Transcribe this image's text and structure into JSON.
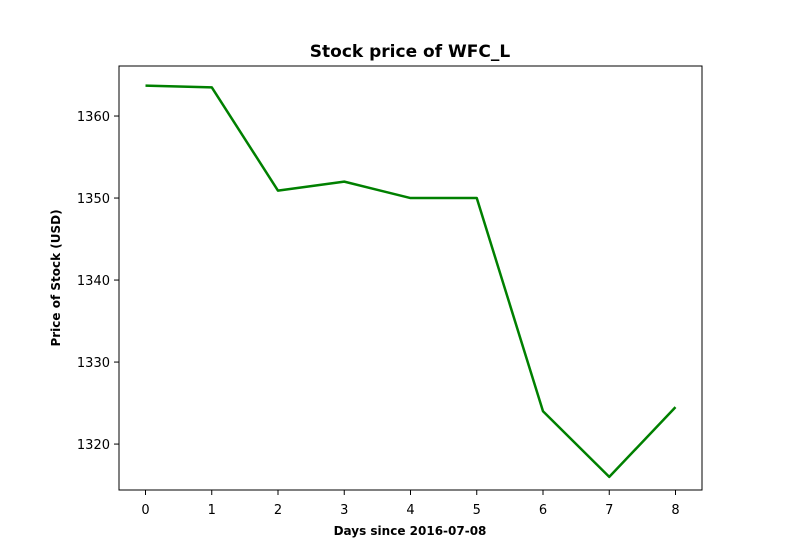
{
  "chart_data": {
    "type": "line",
    "title": "Stock price of WFC_L",
    "xlabel": "Days since 2016-07-08",
    "ylabel": "Price of Stock (USD)",
    "x": [
      0,
      1,
      2,
      3,
      4,
      5,
      6,
      7,
      8
    ],
    "series": [
      {
        "values": [
          1363.7,
          1363.5,
          1350.9,
          1352.0,
          1350.0,
          1350.0,
          1324.0,
          1316.0,
          1324.5
        ],
        "color": "#008000"
      }
    ],
    "xlim": [
      -0.4,
      8.4
    ],
    "ylim": [
      1314.4,
      1366.1
    ],
    "xticks": [
      0,
      1,
      2,
      3,
      4,
      5,
      6,
      7,
      8
    ],
    "yticks": [
      1320,
      1330,
      1340,
      1350,
      1360
    ],
    "grid": false
  }
}
